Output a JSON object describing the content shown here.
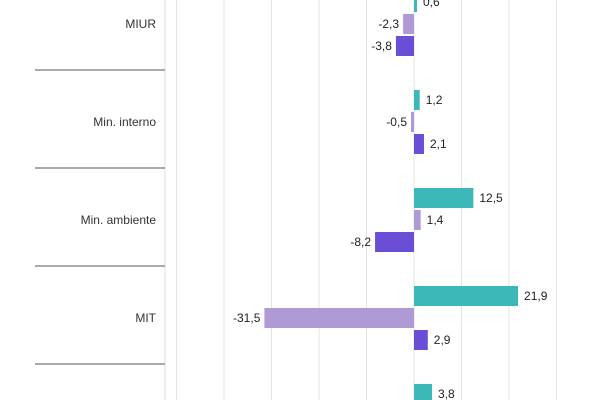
{
  "chart_data": {
    "type": "bar",
    "orientation": "horizontal",
    "categories": [
      "MIUR",
      "Min. interno",
      "Min. ambiente",
      "MIT",
      ""
    ],
    "series": [
      {
        "color": "#3db8b8",
        "values": [
          0.6,
          1.2,
          12.5,
          21.9,
          3.8
        ]
      },
      {
        "color": "#b09ad6",
        "values": [
          -2.3,
          -0.5,
          1.4,
          -31.5,
          null
        ]
      },
      {
        "color": "#6a4fd6",
        "values": [
          -3.8,
          2.1,
          -8.2,
          2.9,
          null
        ]
      }
    ],
    "value_labels": [
      [
        "0,6",
        "-2,3",
        "-3,8"
      ],
      [
        "1,2",
        "-0,5",
        "2,1"
      ],
      [
        "12,5",
        "1,4",
        "-8,2"
      ],
      [
        "21,9",
        "-31,5",
        "2,9"
      ],
      [
        "3,8",
        "",
        ""
      ]
    ],
    "xlim": [
      -50,
      40
    ],
    "gridlines": [
      -50,
      -40,
      -30,
      -20,
      -10,
      0,
      10,
      20,
      30,
      40
    ],
    "grid": true,
    "legend": "none",
    "title": "",
    "xlabel": "",
    "ylabel": ""
  }
}
